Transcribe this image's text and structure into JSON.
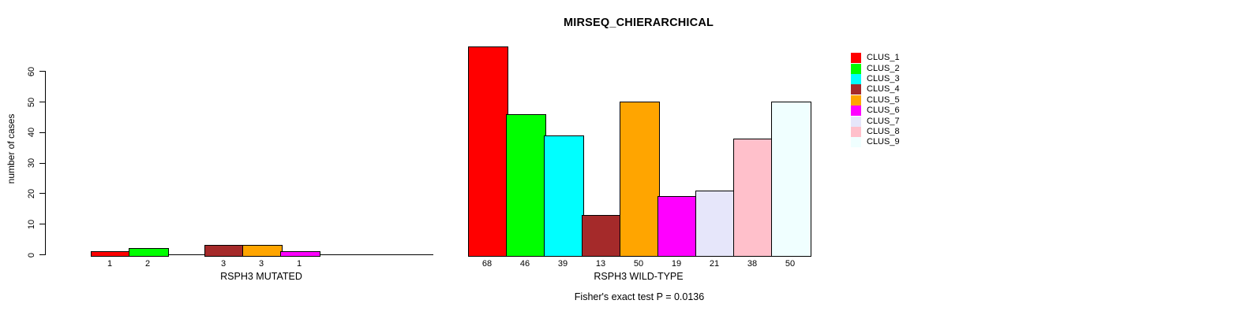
{
  "chart_data": {
    "type": "bar",
    "title": "MIRSEQ_CHIERARCHICAL",
    "ylabel": "number of cases",
    "yticks": [
      0,
      10,
      20,
      30,
      40,
      50,
      60
    ],
    "ylim": [
      0,
      68
    ],
    "grid": false,
    "legend_position": "right-outside",
    "clusters": [
      {
        "name": "CLUS_1",
        "color": "#FF0000"
      },
      {
        "name": "CLUS_2",
        "color": "#00FF00"
      },
      {
        "name": "CLUS_3",
        "color": "#00FFFF"
      },
      {
        "name": "CLUS_4",
        "color": "#A52A2A"
      },
      {
        "name": "CLUS_5",
        "color": "#FFA500"
      },
      {
        "name": "CLUS_6",
        "color": "#FF00FF"
      },
      {
        "name": "CLUS_7",
        "color": "#E6E6FA"
      },
      {
        "name": "CLUS_8",
        "color": "#FFC0CB"
      },
      {
        "name": "CLUS_9",
        "color": "#F0FFFF"
      }
    ],
    "groups": [
      {
        "label": "RSPH3 MUTATED",
        "values": [
          1,
          2,
          0,
          3,
          3,
          1,
          0,
          0,
          0
        ]
      },
      {
        "label": "RSPH3 WILD-TYPE",
        "values": [
          68,
          46,
          39,
          13,
          50,
          19,
          21,
          38,
          50
        ]
      }
    ],
    "annotation": "Fisher's exact test P = 0.0136"
  }
}
